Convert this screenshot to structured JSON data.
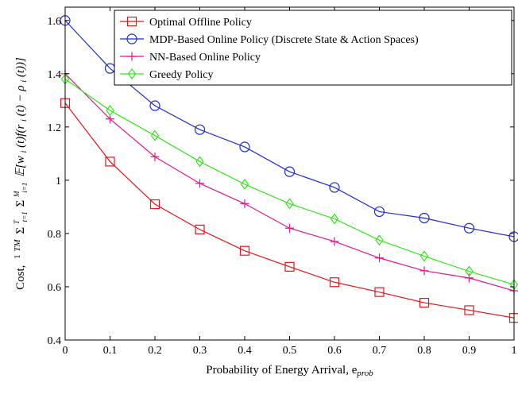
{
  "chart_data": {
    "type": "line",
    "xlabel": "Probability of Energy Arrival, e",
    "xlabel_sub": "prob",
    "ylabel": "Cost, (1/TM) Σ_{t=1}^{T} Σ_{i=1}^{M} E[w_i(t) f(r_i(t) − ρ_i(t))]",
    "ylabel_parts": {
      "prefix": "Cost,",
      "frac_num": "1",
      "frac_den": "TM",
      "sum1": "Σ",
      "sum1_sub": "t=1",
      "sum1_sup": "T",
      "sum2": "Σ",
      "sum2_sub": "i=1",
      "sum2_sup": "M",
      "expr": "𝔼[w",
      "expr_i1": "i",
      "expr_mid": "(t)f(r",
      "expr_i2": "i",
      "expr_mid2": "(t) − ρ",
      "expr_i3": "i",
      "expr_end": "(t))]"
    },
    "x": [
      0,
      0.1,
      0.2,
      0.3,
      0.4,
      0.5,
      0.6,
      0.7,
      0.8,
      0.9,
      1
    ],
    "xlim": [
      0,
      1
    ],
    "ylim": [
      0.4,
      1.65
    ],
    "xticks": [
      "0",
      "0.1",
      "0.2",
      "0.3",
      "0.4",
      "0.5",
      "0.6",
      "0.7",
      "0.8",
      "0.9",
      "1"
    ],
    "yticks": [
      "0.4",
      "0.6",
      "0.8",
      "1",
      "1.2",
      "1.4",
      "1.6"
    ],
    "ytick_values": [
      0.4,
      0.6,
      0.8,
      1.0,
      1.2,
      1.4,
      1.6
    ],
    "legend_placement": "top-right",
    "grid": false,
    "series": [
      {
        "name": "Optimal Offline Policy",
        "color": "#e8141b",
        "marker": "square",
        "values": [
          1.29,
          1.07,
          0.91,
          0.815,
          0.735,
          0.675,
          0.617,
          0.58,
          0.54,
          0.512,
          0.483
        ]
      },
      {
        "name": "MDP-Based Online Policy (Discrete State & Action Spaces)",
        "color": "#1f2bd6",
        "marker": "circle",
        "values": [
          1.6,
          1.42,
          1.28,
          1.19,
          1.125,
          1.032,
          0.973,
          0.882,
          0.858,
          0.82,
          0.788
        ]
      },
      {
        "name": "NN-Based Online Policy",
        "color": "#e6158c",
        "marker": "plus",
        "values": [
          1.4,
          1.23,
          1.088,
          0.988,
          0.912,
          0.82,
          0.77,
          0.708,
          0.66,
          0.633,
          0.585
        ]
      },
      {
        "name": "Greedy Policy",
        "color": "#33e61a",
        "marker": "diamond",
        "values": [
          1.38,
          1.262,
          1.168,
          1.07,
          0.985,
          0.912,
          0.855,
          0.775,
          0.715,
          0.658,
          0.608
        ]
      }
    ]
  }
}
